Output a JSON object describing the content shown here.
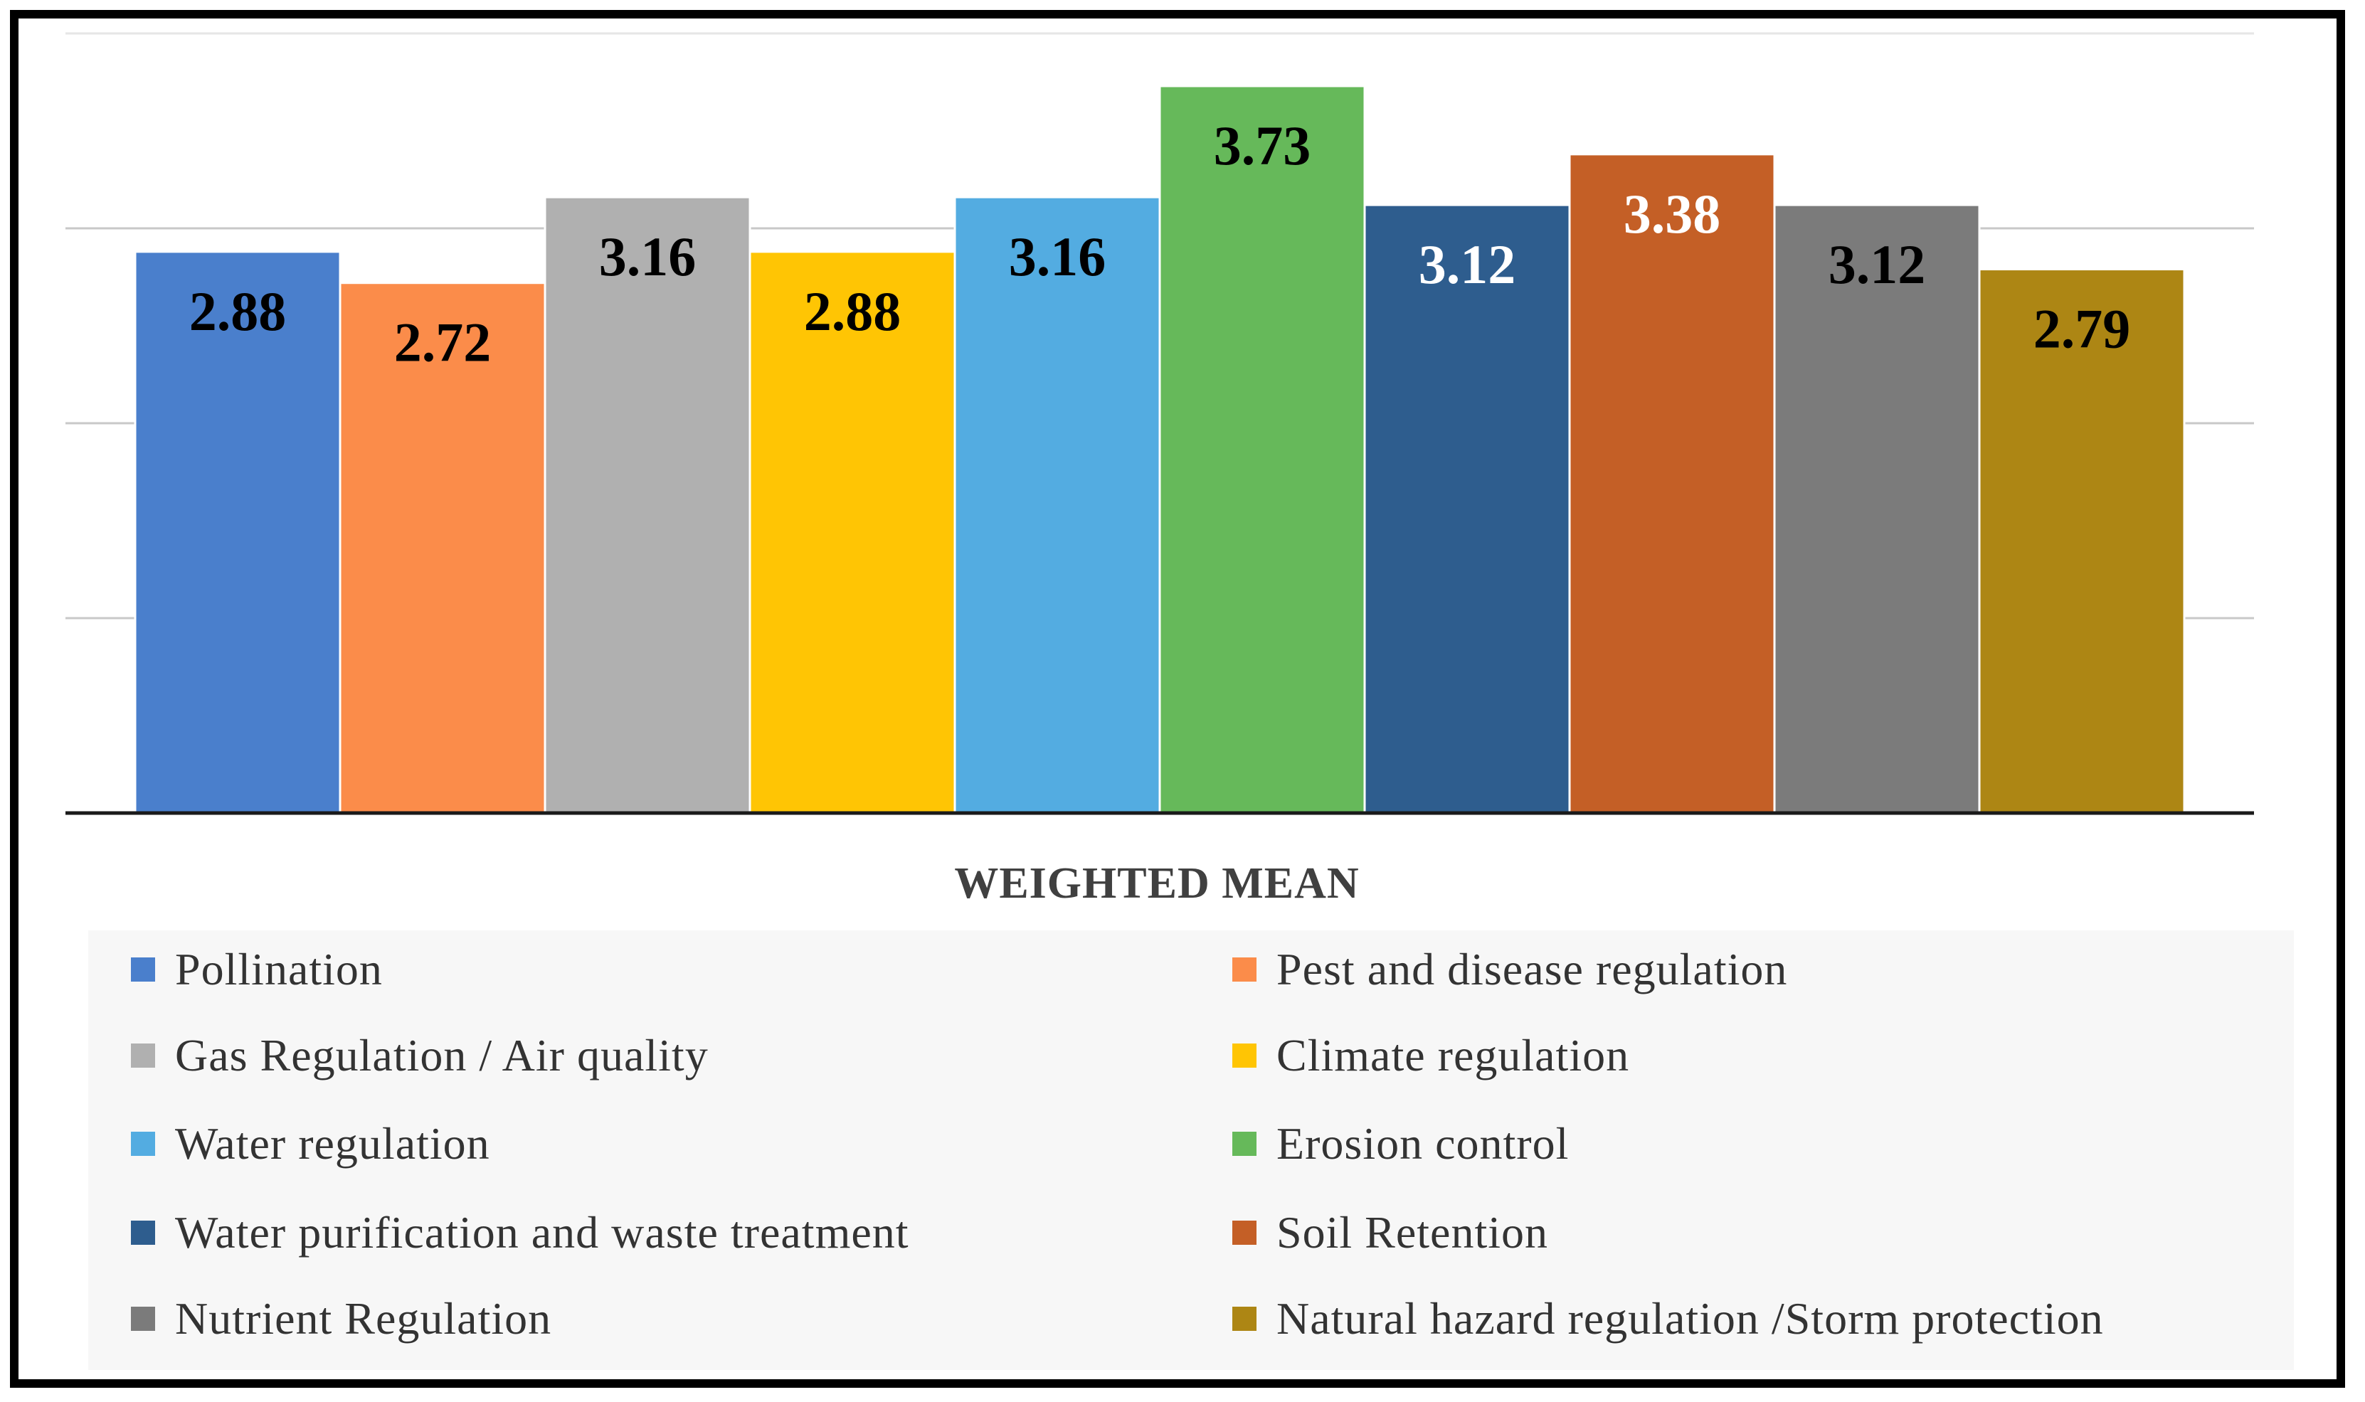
{
  "chart_data": {
    "type": "bar",
    "title": "",
    "xlabel": "WEIGHTED MEAN",
    "ylabel": "",
    "ylim": [
      0,
      4
    ],
    "gridlines": [
      1,
      2,
      3,
      4
    ],
    "grid": true,
    "legend_position": "bottom",
    "series": [
      {
        "name": "Pollination",
        "value": 2.88,
        "label": "2.88",
        "color": "#4a7fcc",
        "label_color": "#000000"
      },
      {
        "name": "Pest and disease regulation",
        "value": 2.72,
        "label": "2.72",
        "color": "#fb8c4a",
        "label_color": "#000000"
      },
      {
        "name": "Gas Regulation / Air quality",
        "value": 3.16,
        "label": "3.16",
        "color": "#b0b0b0",
        "label_color": "#000000"
      },
      {
        "name": "Climate regulation",
        "value": 2.88,
        "label": "2.88",
        "color": "#ffc504",
        "label_color": "#000000"
      },
      {
        "name": "Water regulation",
        "value": 3.16,
        "label": "3.16",
        "color": "#53ace1",
        "label_color": "#000000"
      },
      {
        "name": "Erosion control",
        "value": 3.73,
        "label": "3.73",
        "color": "#66b95a",
        "label_color": "#000000"
      },
      {
        "name": "Water purification and waste treatment",
        "value": 3.12,
        "label": "3.12",
        "color": "#2e5d8e",
        "label_color": "#ffffff"
      },
      {
        "name": "Soil Retention",
        "value": 3.38,
        "label": "3.38",
        "color": "#c45f26",
        "label_color": "#ffffff"
      },
      {
        "name": "Nutrient Regulation",
        "value": 3.12,
        "label": "3.12",
        "color": "#7b7b7b",
        "label_color": "#000000"
      },
      {
        "name": "Natural hazard regulation /Storm protection",
        "value": 2.79,
        "label": "2.79",
        "color": "#ad8614",
        "label_color": "#000000"
      }
    ]
  }
}
